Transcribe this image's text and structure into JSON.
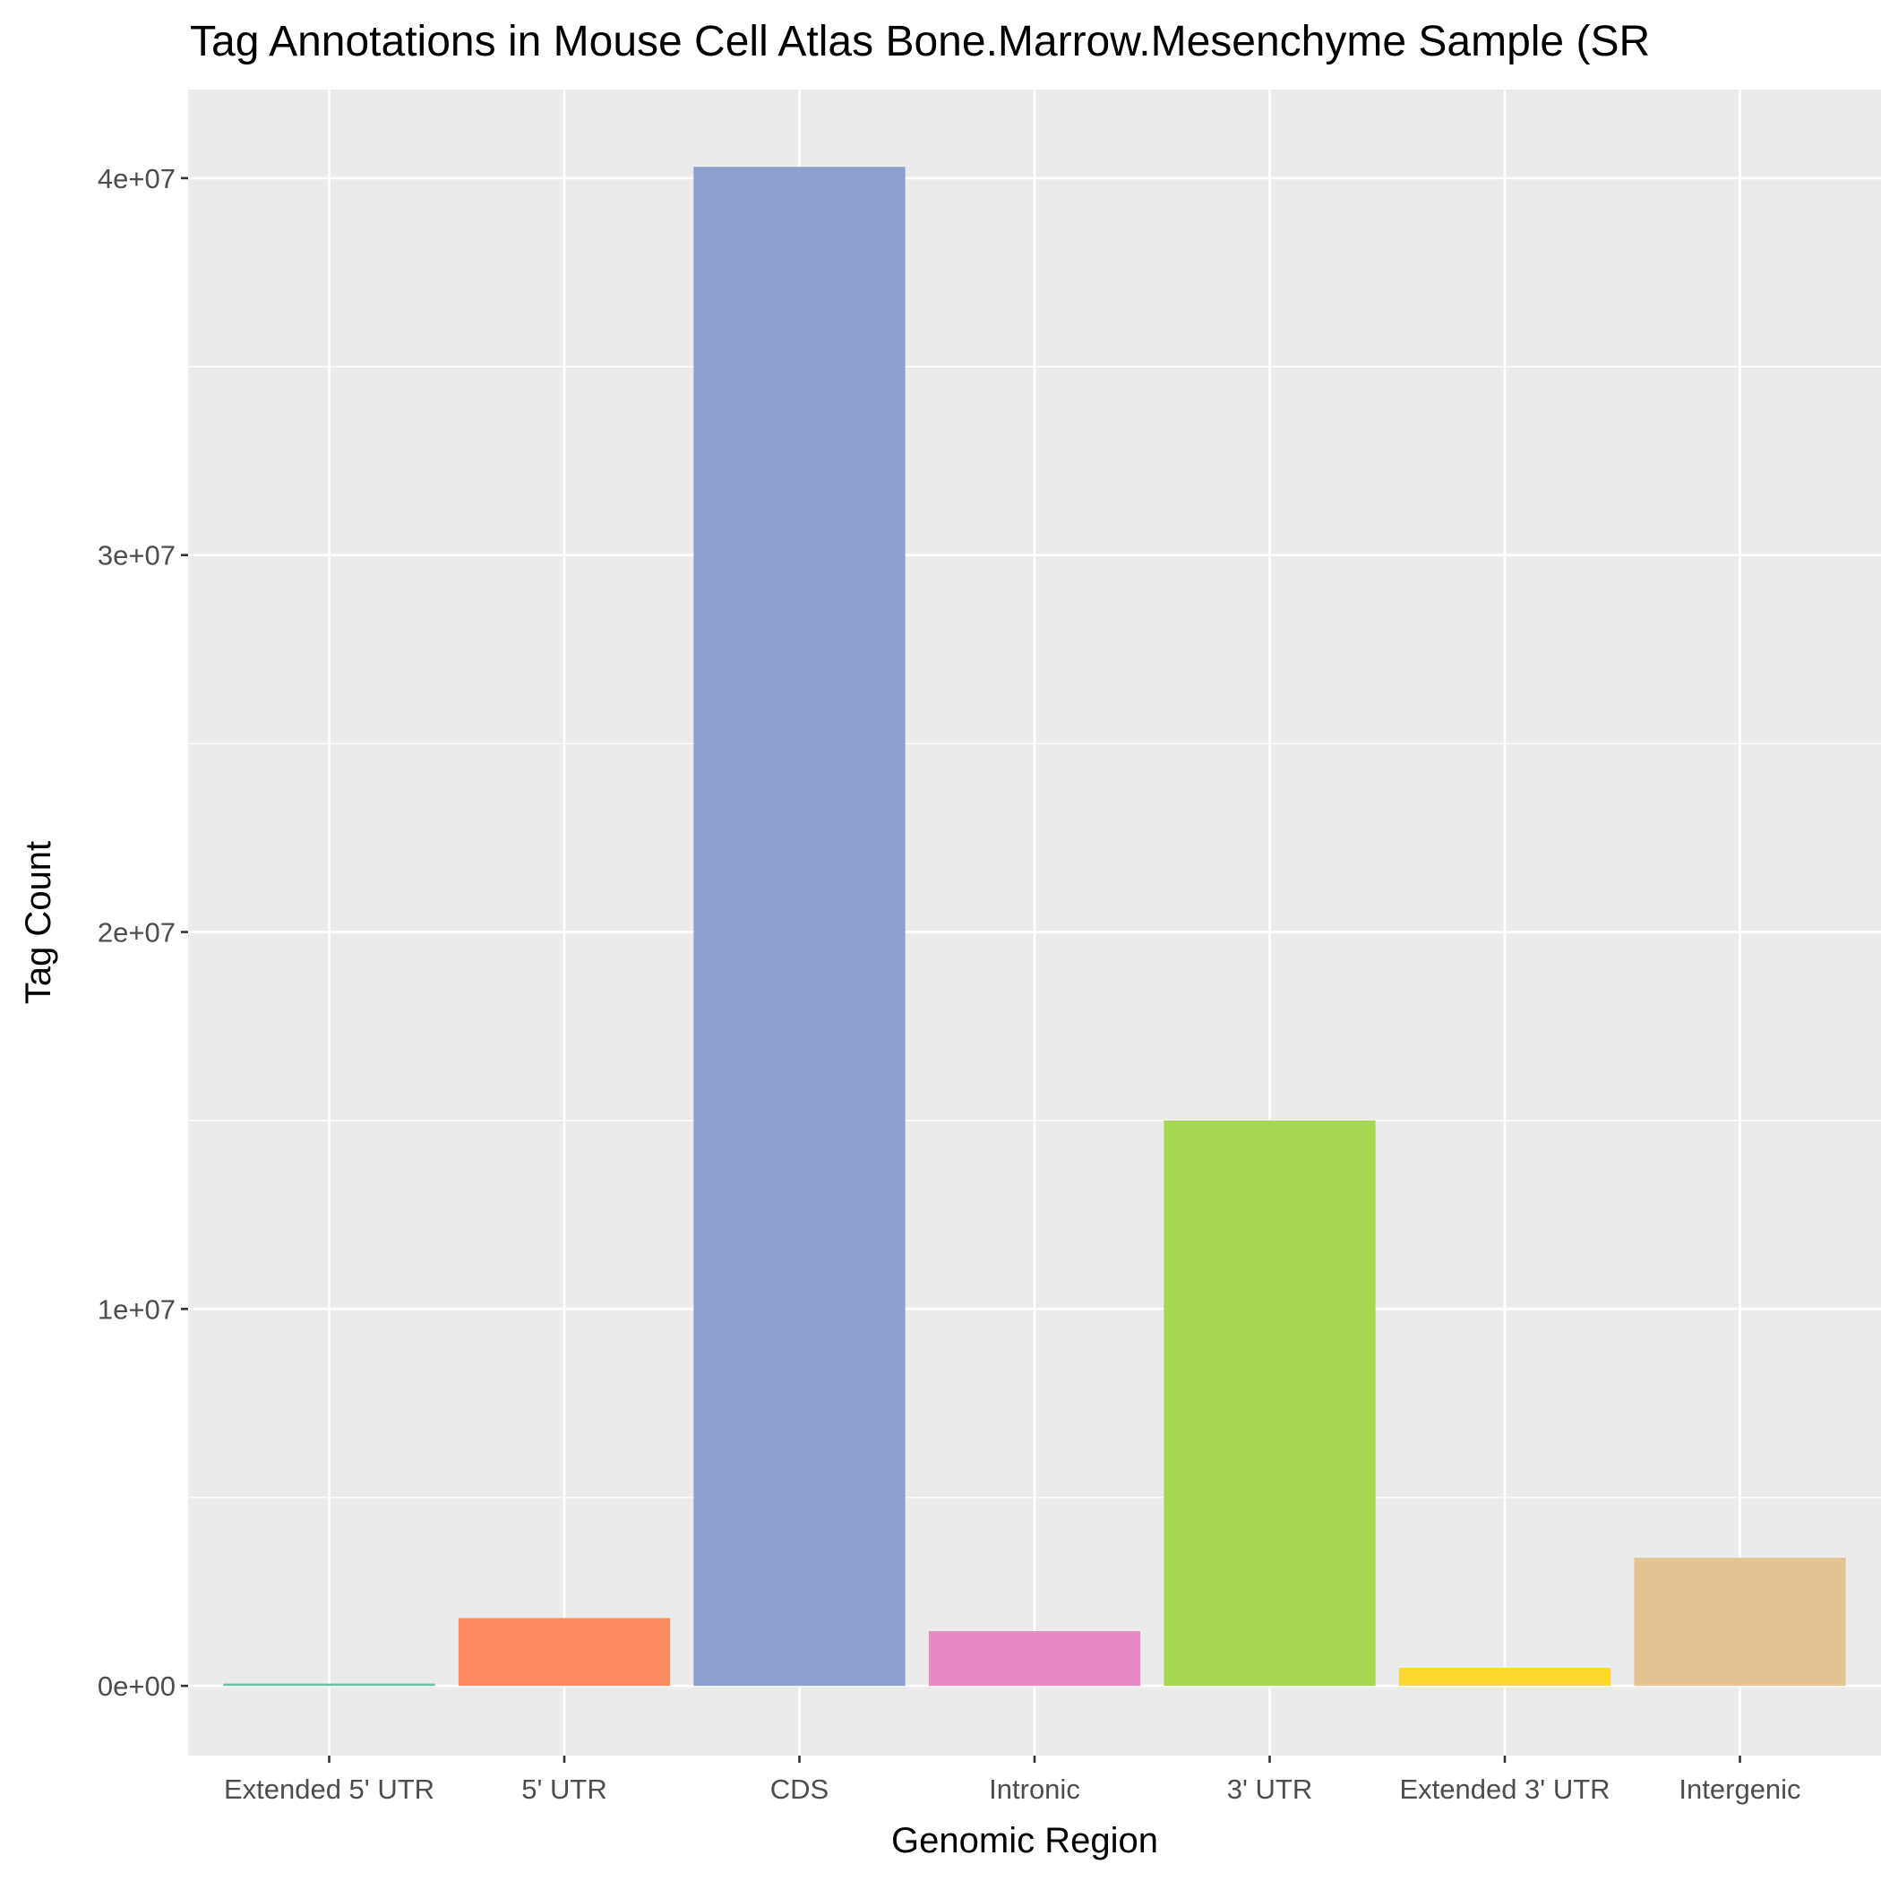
{
  "chart_data": {
    "type": "bar",
    "title": "Tag Annotations in Mouse Cell Atlas Bone.Marrow.Mesenchyme Sample (SR",
    "xlabel": "Genomic Region",
    "ylabel": "Tag Count",
    "categories": [
      "Extended 5' UTR",
      "5' UTR",
      "CDS",
      "Intronic",
      "3' UTR",
      "Extended 3' UTR",
      "Intergenic"
    ],
    "values": [
      60000,
      1800000,
      40300000,
      1450000,
      15000000,
      480000,
      3400000
    ],
    "colors": [
      "#66C2A5",
      "#FC8D62",
      "#8DA0CB",
      "#E78AC3",
      "#A6D854",
      "#FFD92F",
      "#E5C494"
    ],
    "ylim": [
      -1850000,
      42350000
    ],
    "yticks": [
      0,
      10000000,
      20000000,
      30000000,
      40000000
    ],
    "ytick_labels": [
      "0e+00",
      "1e+07",
      "2e+07",
      "3e+07",
      "4e+07"
    ],
    "grid": true,
    "panel_background": "#EBEBEB",
    "legend": "none"
  }
}
